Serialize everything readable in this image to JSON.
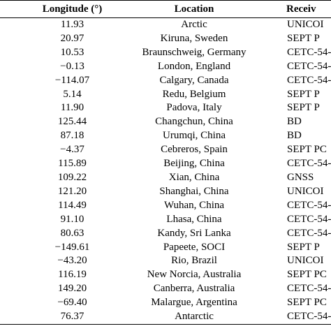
{
  "table": {
    "headers": {
      "longitude": "Longitude (°)",
      "location": "Location",
      "receiver": "Receiv"
    },
    "rows": [
      {
        "longitude": "11.93",
        "location": "Arctic",
        "receiver": "UNICOI"
      },
      {
        "longitude": "20.97",
        "location": "Kiruna, Sweden",
        "receiver": "SEPT P"
      },
      {
        "longitude": "10.53",
        "location": "Braunschweig, Germany",
        "receiver": "CETC-54-"
      },
      {
        "longitude": "−0.13",
        "location": "London, England",
        "receiver": "CETC-54-"
      },
      {
        "longitude": "−114.07",
        "location": "Calgary, Canada",
        "receiver": "CETC-54-"
      },
      {
        "longitude": "5.14",
        "location": "Redu, Belgium",
        "receiver": "SEPT P"
      },
      {
        "longitude": "11.90",
        "location": "Padova, Italy",
        "receiver": "SEPT P"
      },
      {
        "longitude": "125.44",
        "location": "Changchun, China",
        "receiver": "BD"
      },
      {
        "longitude": "87.18",
        "location": "Urumqi, China",
        "receiver": "BD"
      },
      {
        "longitude": "−4.37",
        "location": "Cebreros, Spain",
        "receiver": "SEPT PC"
      },
      {
        "longitude": "115.89",
        "location": "Beijing, China",
        "receiver": "CETC-54-"
      },
      {
        "longitude": "109.22",
        "location": "Xian, China",
        "receiver": "GNSS"
      },
      {
        "longitude": "121.20",
        "location": "Shanghai, China",
        "receiver": "UNICOI"
      },
      {
        "longitude": "114.49",
        "location": "Wuhan, China",
        "receiver": "CETC-54-"
      },
      {
        "longitude": "91.10",
        "location": "Lhasa, China",
        "receiver": "CETC-54-"
      },
      {
        "longitude": "80.63",
        "location": "Kandy, Sri Lanka",
        "receiver": "CETC-54-"
      },
      {
        "longitude": "−149.61",
        "location": "Papeete, SOCI",
        "receiver": "SEPT P"
      },
      {
        "longitude": "−43.20",
        "location": "Rio, Brazil",
        "receiver": "UNICOI"
      },
      {
        "longitude": "116.19",
        "location": "New Norcia, Australia",
        "receiver": "SEPT PC"
      },
      {
        "longitude": "149.20",
        "location": "Canberra, Australia",
        "receiver": "CETC-54-"
      },
      {
        "longitude": "−69.40",
        "location": "Malargue, Argentina",
        "receiver": "SEPT PC"
      },
      {
        "longitude": "76.37",
        "location": "Antarctic",
        "receiver": "CETC-54-"
      }
    ]
  }
}
